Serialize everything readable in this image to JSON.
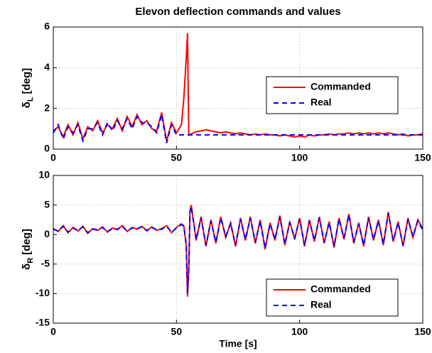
{
  "chart_data": [
    {
      "type": "line",
      "title": "Elevon deflection commands and values",
      "ylabel_symbol": "δ",
      "ylabel_subscript": "L",
      "ylabel_unit": "[deg]",
      "x": [
        0,
        2,
        4,
        6,
        8,
        10,
        12,
        14,
        16,
        18,
        20,
        22,
        24,
        26,
        28,
        30,
        32,
        34,
        36,
        38,
        40,
        42,
        44,
        46,
        48,
        50,
        52,
        53,
        54,
        54.5,
        55,
        55.5,
        56,
        58,
        60,
        62,
        64,
        66,
        68,
        70,
        72,
        74,
        76,
        78,
        80,
        82,
        84,
        86,
        88,
        90,
        92,
        94,
        96,
        98,
        100,
        102,
        104,
        106,
        108,
        110,
        112,
        114,
        116,
        118,
        120,
        122,
        124,
        126,
        128,
        130,
        132,
        134,
        136,
        138,
        140,
        142,
        144,
        146,
        148,
        150
      ],
      "series": [
        {
          "name": "Commanded",
          "color": "#ff0000",
          "dash": false,
          "values": [
            0.9,
            1.1,
            0.6,
            1.2,
            0.7,
            1.3,
            0.5,
            1.1,
            0.9,
            1.4,
            0.8,
            1.2,
            1.0,
            1.5,
            0.9,
            1.6,
            1.1,
            1.7,
            1.2,
            1.4,
            1.0,
            0.9,
            1.8,
            0.4,
            1.3,
            0.8,
            1.2,
            2.5,
            4.5,
            5.7,
            0.7,
            0.7,
            0.75,
            0.85,
            0.9,
            0.95,
            0.9,
            0.85,
            0.8,
            0.85,
            0.8,
            0.75,
            0.8,
            0.75,
            0.7,
            0.75,
            0.7,
            0.75,
            0.7,
            0.7,
            0.65,
            0.7,
            0.65,
            0.6,
            0.65,
            0.6,
            0.7,
            0.65,
            0.7,
            0.7,
            0.75,
            0.7,
            0.75,
            0.75,
            0.8,
            0.75,
            0.8,
            0.75,
            0.8,
            0.75,
            0.8,
            0.75,
            0.8,
            0.75,
            0.7,
            0.75,
            0.65,
            0.7,
            0.7,
            0.75
          ]
        },
        {
          "name": "Real",
          "color": "#0000ff",
          "dash": true,
          "values": [
            0.8,
            1.2,
            0.5,
            1.1,
            0.8,
            1.2,
            0.4,
            1.0,
            1.0,
            1.3,
            0.7,
            1.3,
            0.9,
            1.4,
            1.0,
            1.5,
            1.0,
            1.6,
            1.3,
            1.3,
            1.1,
            0.8,
            1.7,
            0.3,
            1.2,
            0.7,
            0.7,
            0.7,
            0.7,
            0.7,
            0.7,
            0.7,
            0.7,
            0.7,
            0.7,
            0.7,
            0.7,
            0.7,
            0.7,
            0.7,
            0.7,
            0.7,
            0.7,
            0.7,
            0.7,
            0.7,
            0.7,
            0.7,
            0.7,
            0.7,
            0.7,
            0.7,
            0.7,
            0.7,
            0.7,
            0.7,
            0.7,
            0.7,
            0.7,
            0.7,
            0.7,
            0.7,
            0.7,
            0.7,
            0.7,
            0.7,
            0.7,
            0.7,
            0.7,
            0.7,
            0.7,
            0.7,
            0.7,
            0.7,
            0.7,
            0.7,
            0.7,
            0.7,
            0.7,
            0.7
          ]
        }
      ],
      "xlim": [
        0,
        150
      ],
      "xticks": [
        0,
        50,
        100,
        150
      ],
      "ylim": [
        0,
        6
      ],
      "yticks": [
        0,
        2,
        4,
        6
      ],
      "grid": true,
      "legend": "right"
    },
    {
      "type": "line",
      "ylabel_symbol": "δ",
      "ylabel_subscript": "R",
      "ylabel_unit": "[deg]",
      "xlabel": "Time [s]",
      "x": [
        0,
        2,
        4,
        6,
        8,
        10,
        12,
        14,
        16,
        18,
        20,
        22,
        24,
        26,
        28,
        30,
        32,
        34,
        36,
        38,
        40,
        42,
        44,
        46,
        48,
        50,
        52,
        53,
        54,
        54.5,
        55,
        55.5,
        56,
        58,
        60,
        62,
        64,
        66,
        68,
        70,
        72,
        74,
        76,
        78,
        80,
        82,
        84,
        86,
        88,
        90,
        92,
        94,
        96,
        98,
        100,
        102,
        104,
        106,
        108,
        110,
        112,
        114,
        116,
        118,
        120,
        122,
        124,
        126,
        128,
        130,
        132,
        134,
        136,
        138,
        140,
        142,
        144,
        146,
        148,
        150
      ],
      "series": [
        {
          "name": "Commanded",
          "color": "#ff0000",
          "dash": false,
          "values": [
            1,
            0.5,
            1.5,
            0.3,
            1.2,
            0.6,
            1.4,
            0.2,
            1.0,
            0.7,
            1.3,
            0.4,
            1.1,
            0.8,
            1.5,
            0.5,
            1.2,
            0.9,
            1.4,
            0.6,
            1.3,
            0.7,
            1.0,
            1.5,
            0.3,
            1.2,
            1.8,
            1.5,
            -2,
            -10.5,
            -6,
            4,
            5,
            -1,
            3,
            -2,
            2.5,
            -1.5,
            3,
            -0.5,
            2,
            -2,
            2.8,
            -1,
            3,
            -1.5,
            2.5,
            -2.5,
            2,
            -1,
            3.2,
            -1.8,
            2.2,
            -0.8,
            2.8,
            -2,
            2.5,
            -1.2,
            3,
            -1.5,
            2.2,
            -2.2,
            2.8,
            -0.8,
            3.5,
            -1.5,
            2,
            -2,
            3,
            -1,
            2.5,
            -1.8,
            3.8,
            -1.2,
            2.2,
            -2,
            2.8,
            -0.5,
            2.5,
            1
          ]
        },
        {
          "name": "Real",
          "color": "#0000ff",
          "dash": true,
          "values": [
            0.9,
            0.6,
            1.4,
            0.4,
            1.1,
            0.7,
            1.3,
            0.3,
            0.9,
            0.8,
            1.2,
            0.5,
            1.0,
            0.9,
            1.4,
            0.6,
            1.1,
            1.0,
            1.3,
            0.7,
            1.2,
            0.8,
            0.9,
            1.4,
            0.4,
            1.1,
            1.7,
            1.4,
            -1.8,
            -10,
            -5.5,
            3.8,
            4.7,
            -0.8,
            2.8,
            -1.8,
            2.3,
            -1.3,
            2.8,
            -0.3,
            1.8,
            -1.8,
            2.6,
            -0.8,
            2.8,
            -1.3,
            2.3,
            -2.3,
            1.8,
            -0.8,
            3.0,
            -1.6,
            2.0,
            -0.6,
            2.6,
            -1.8,
            2.3,
            -1.0,
            2.8,
            -1.3,
            2.0,
            -2.0,
            2.6,
            -0.6,
            3.3,
            -1.3,
            1.8,
            -1.8,
            2.8,
            -0.8,
            2.3,
            -1.6,
            3.6,
            -1.0,
            2.0,
            -1.8,
            2.6,
            -0.3,
            2.3,
            0.8
          ]
        }
      ],
      "xlim": [
        0,
        150
      ],
      "xticks": [
        0,
        50,
        100,
        150
      ],
      "ylim": [
        -15,
        10
      ],
      "yticks": [
        -15,
        -10,
        -5,
        0,
        5,
        10
      ],
      "grid": true,
      "legend": "lower right"
    }
  ]
}
